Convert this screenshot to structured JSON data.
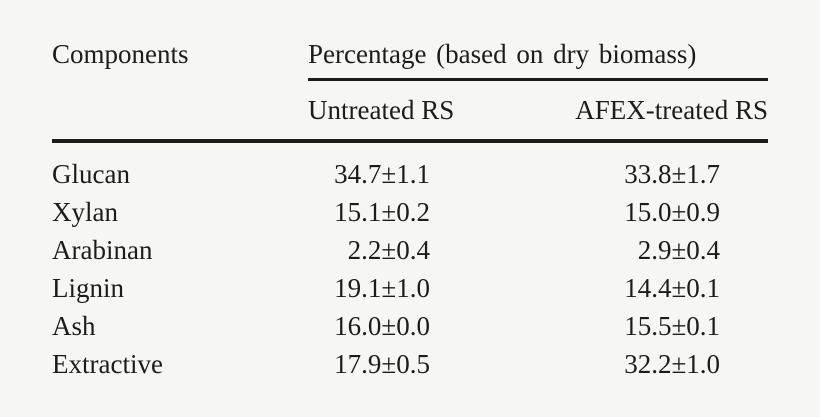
{
  "page": {
    "background_color": "#f6f6f5",
    "text_color": "#1c1c1c",
    "rule_color": "#1c1c1c"
  },
  "table": {
    "header": {
      "components": "Components",
      "group": "Percentage (based on dry biomass)",
      "untreated": "Untreated RS",
      "afex": "AFEX-treated RS"
    },
    "rows": [
      {
        "component": "Glucan",
        "untreated": "34.7±1.1",
        "afex": "33.8±1.7"
      },
      {
        "component": "Xylan",
        "untreated": "15.1±0.2",
        "afex": "15.0±0.9"
      },
      {
        "component": "Arabinan",
        "untreated": "2.2±0.4",
        "afex": "2.9±0.4"
      },
      {
        "component": "Lignin",
        "untreated": "19.1±1.0",
        "afex": "14.4±0.1"
      },
      {
        "component": "Ash",
        "untreated": "16.0±0.0",
        "afex": "15.5±0.1"
      },
      {
        "component": "Extractive",
        "untreated": "17.9±0.5",
        "afex": "32.2±1.0"
      }
    ]
  }
}
